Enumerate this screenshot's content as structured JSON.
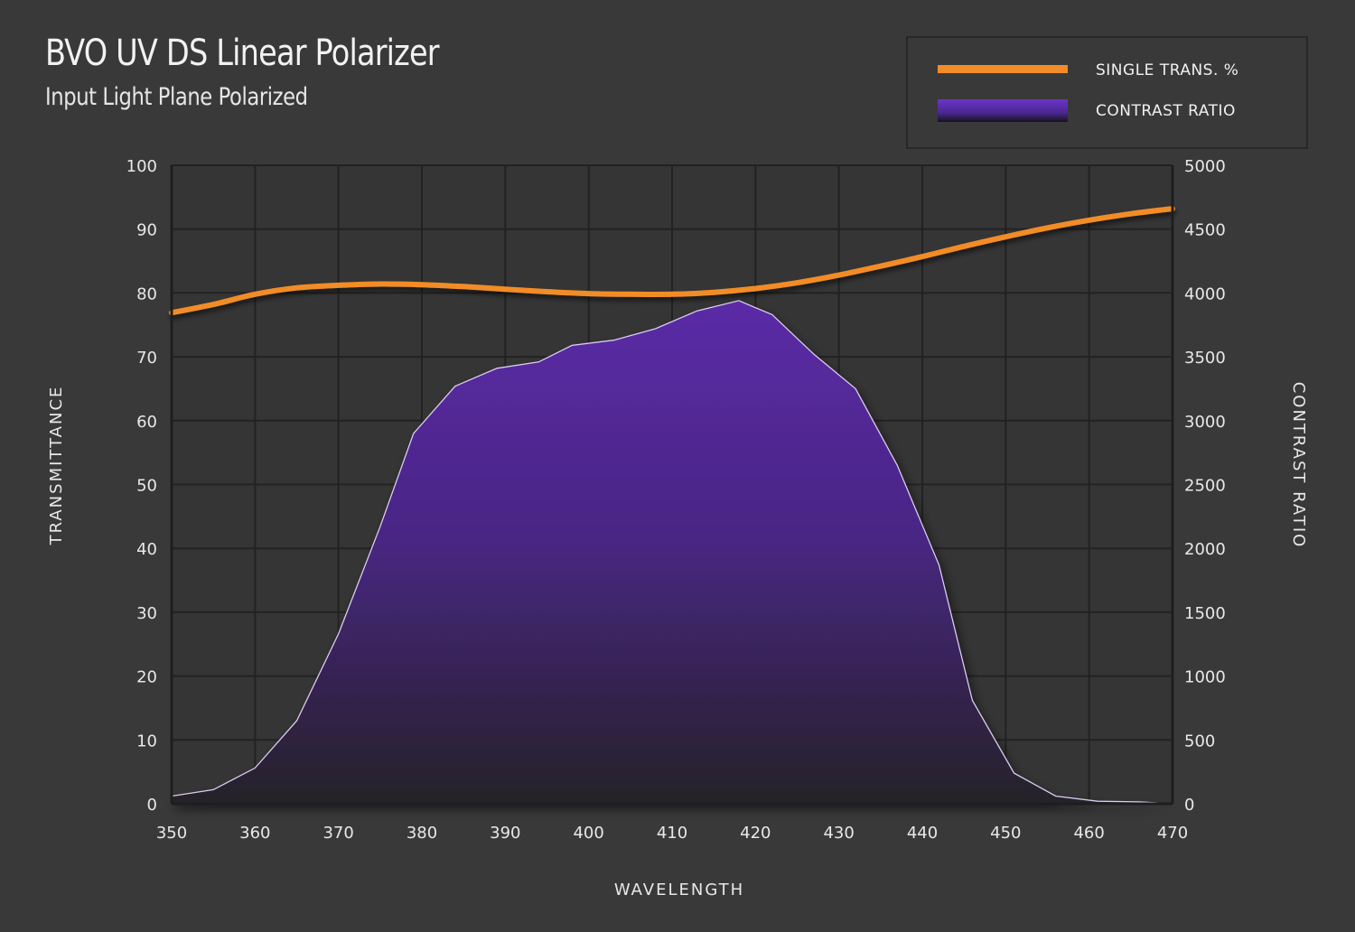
{
  "chart_data": {
    "type": "line",
    "title": "BVO UV DS Linear Polarizer",
    "subtitle": "Input Light Plane Polarized",
    "xlabel": "WAVELENGTH",
    "ylabel_left": "TRANSMITTANCE",
    "ylabel_right": "CONTRAST RATIO",
    "xlim": [
      350,
      470
    ],
    "ylim_left": [
      0,
      100
    ],
    "ylim_right": [
      0,
      5000
    ],
    "x_ticks": [
      350,
      360,
      370,
      380,
      390,
      400,
      410,
      420,
      430,
      440,
      450,
      460,
      470
    ],
    "y_ticks_left": [
      0,
      10,
      20,
      30,
      40,
      50,
      60,
      70,
      80,
      90,
      100
    ],
    "y_ticks_right": [
      0,
      500,
      1000,
      1500,
      2000,
      2500,
      3000,
      3500,
      4000,
      4500,
      5000
    ],
    "grid": true,
    "legend_position": "top-right",
    "series": [
      {
        "name": "SINGLE TRANS. %",
        "type": "line",
        "axis": "left",
        "color": "#f28c28",
        "x": [
          350,
          355,
          360,
          365,
          370,
          375,
          380,
          385,
          390,
          395,
          400,
          405,
          410,
          415,
          420,
          425,
          430,
          435,
          440,
          445,
          450,
          455,
          460,
          465,
          470
        ],
        "y": [
          76.9,
          78.2,
          79.8,
          80.8,
          81.2,
          81.4,
          81.3,
          81.0,
          80.6,
          80.2,
          79.9,
          79.8,
          79.8,
          80.1,
          80.7,
          81.6,
          82.8,
          84.2,
          85.7,
          87.3,
          88.8,
          90.2,
          91.4,
          92.4,
          93.2
        ]
      },
      {
        "name": "CONTRAST RATIO",
        "type": "area",
        "axis": "right",
        "color": "#5b2aa6",
        "x": [
          350,
          355,
          360,
          365,
          370,
          375,
          379,
          384,
          389,
          394,
          398,
          403,
          408,
          413,
          418,
          422,
          427,
          432,
          437,
          442,
          446,
          451,
          456,
          461,
          466,
          470
        ],
        "y": [
          60,
          110,
          280,
          650,
          1330,
          2170,
          2900,
          3270,
          3410,
          3460,
          3590,
          3630,
          3720,
          3860,
          3940,
          3830,
          3520,
          3250,
          2650,
          1870,
          810,
          240,
          60,
          20,
          15,
          0
        ]
      }
    ]
  }
}
